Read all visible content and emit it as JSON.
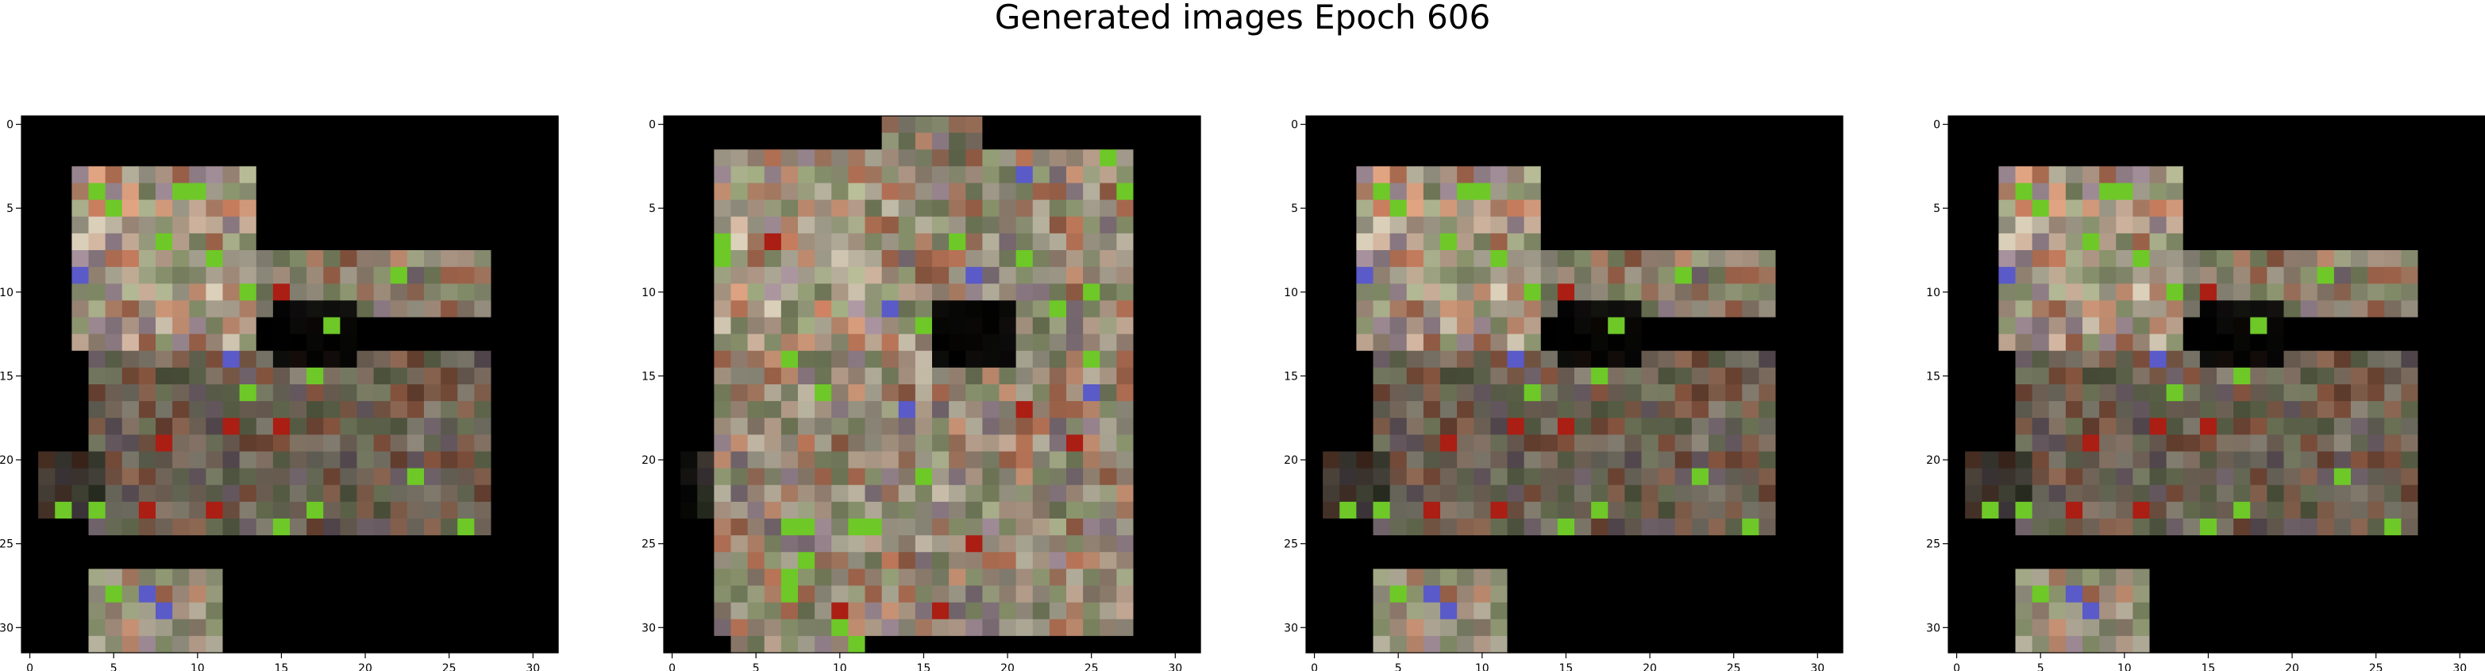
{
  "figure_title": "Generated images Epoch 606",
  "chart_data": [
    {
      "type": "heatmap",
      "description_of_content": "32x32 RGB generated image",
      "xticks": [
        0,
        5,
        10,
        15,
        20,
        25,
        30
      ],
      "yticks": [
        0,
        5,
        10,
        15,
        20,
        25,
        30
      ],
      "xlim": [
        -0.5,
        31.5
      ],
      "ylim": [
        31.5,
        -0.5
      ],
      "grid": false
    },
    {
      "type": "heatmap",
      "xticks": [
        0,
        5,
        10,
        15,
        20,
        25,
        30
      ],
      "yticks": [
        0,
        5,
        10,
        15,
        20,
        25,
        30
      ],
      "xlim": [
        -0.5,
        31.5
      ],
      "ylim": [
        31.5,
        -0.5
      ],
      "grid": false
    },
    {
      "type": "heatmap",
      "xticks": [
        0,
        5,
        10,
        15,
        20,
        25,
        30
      ],
      "yticks": [
        0,
        5,
        10,
        15,
        20,
        25,
        30
      ],
      "xlim": [
        -0.5,
        31.5
      ],
      "ylim": [
        31.5,
        -0.5
      ],
      "grid": false
    },
    {
      "type": "heatmap",
      "xticks": [
        0,
        5,
        10,
        15,
        20,
        25,
        30
      ],
      "yticks": [
        0,
        5,
        10,
        15,
        20,
        25,
        30
      ],
      "xlim": [
        -0.5,
        31.5
      ],
      "ylim": [
        31.5,
        -0.5
      ],
      "grid": false
    }
  ]
}
